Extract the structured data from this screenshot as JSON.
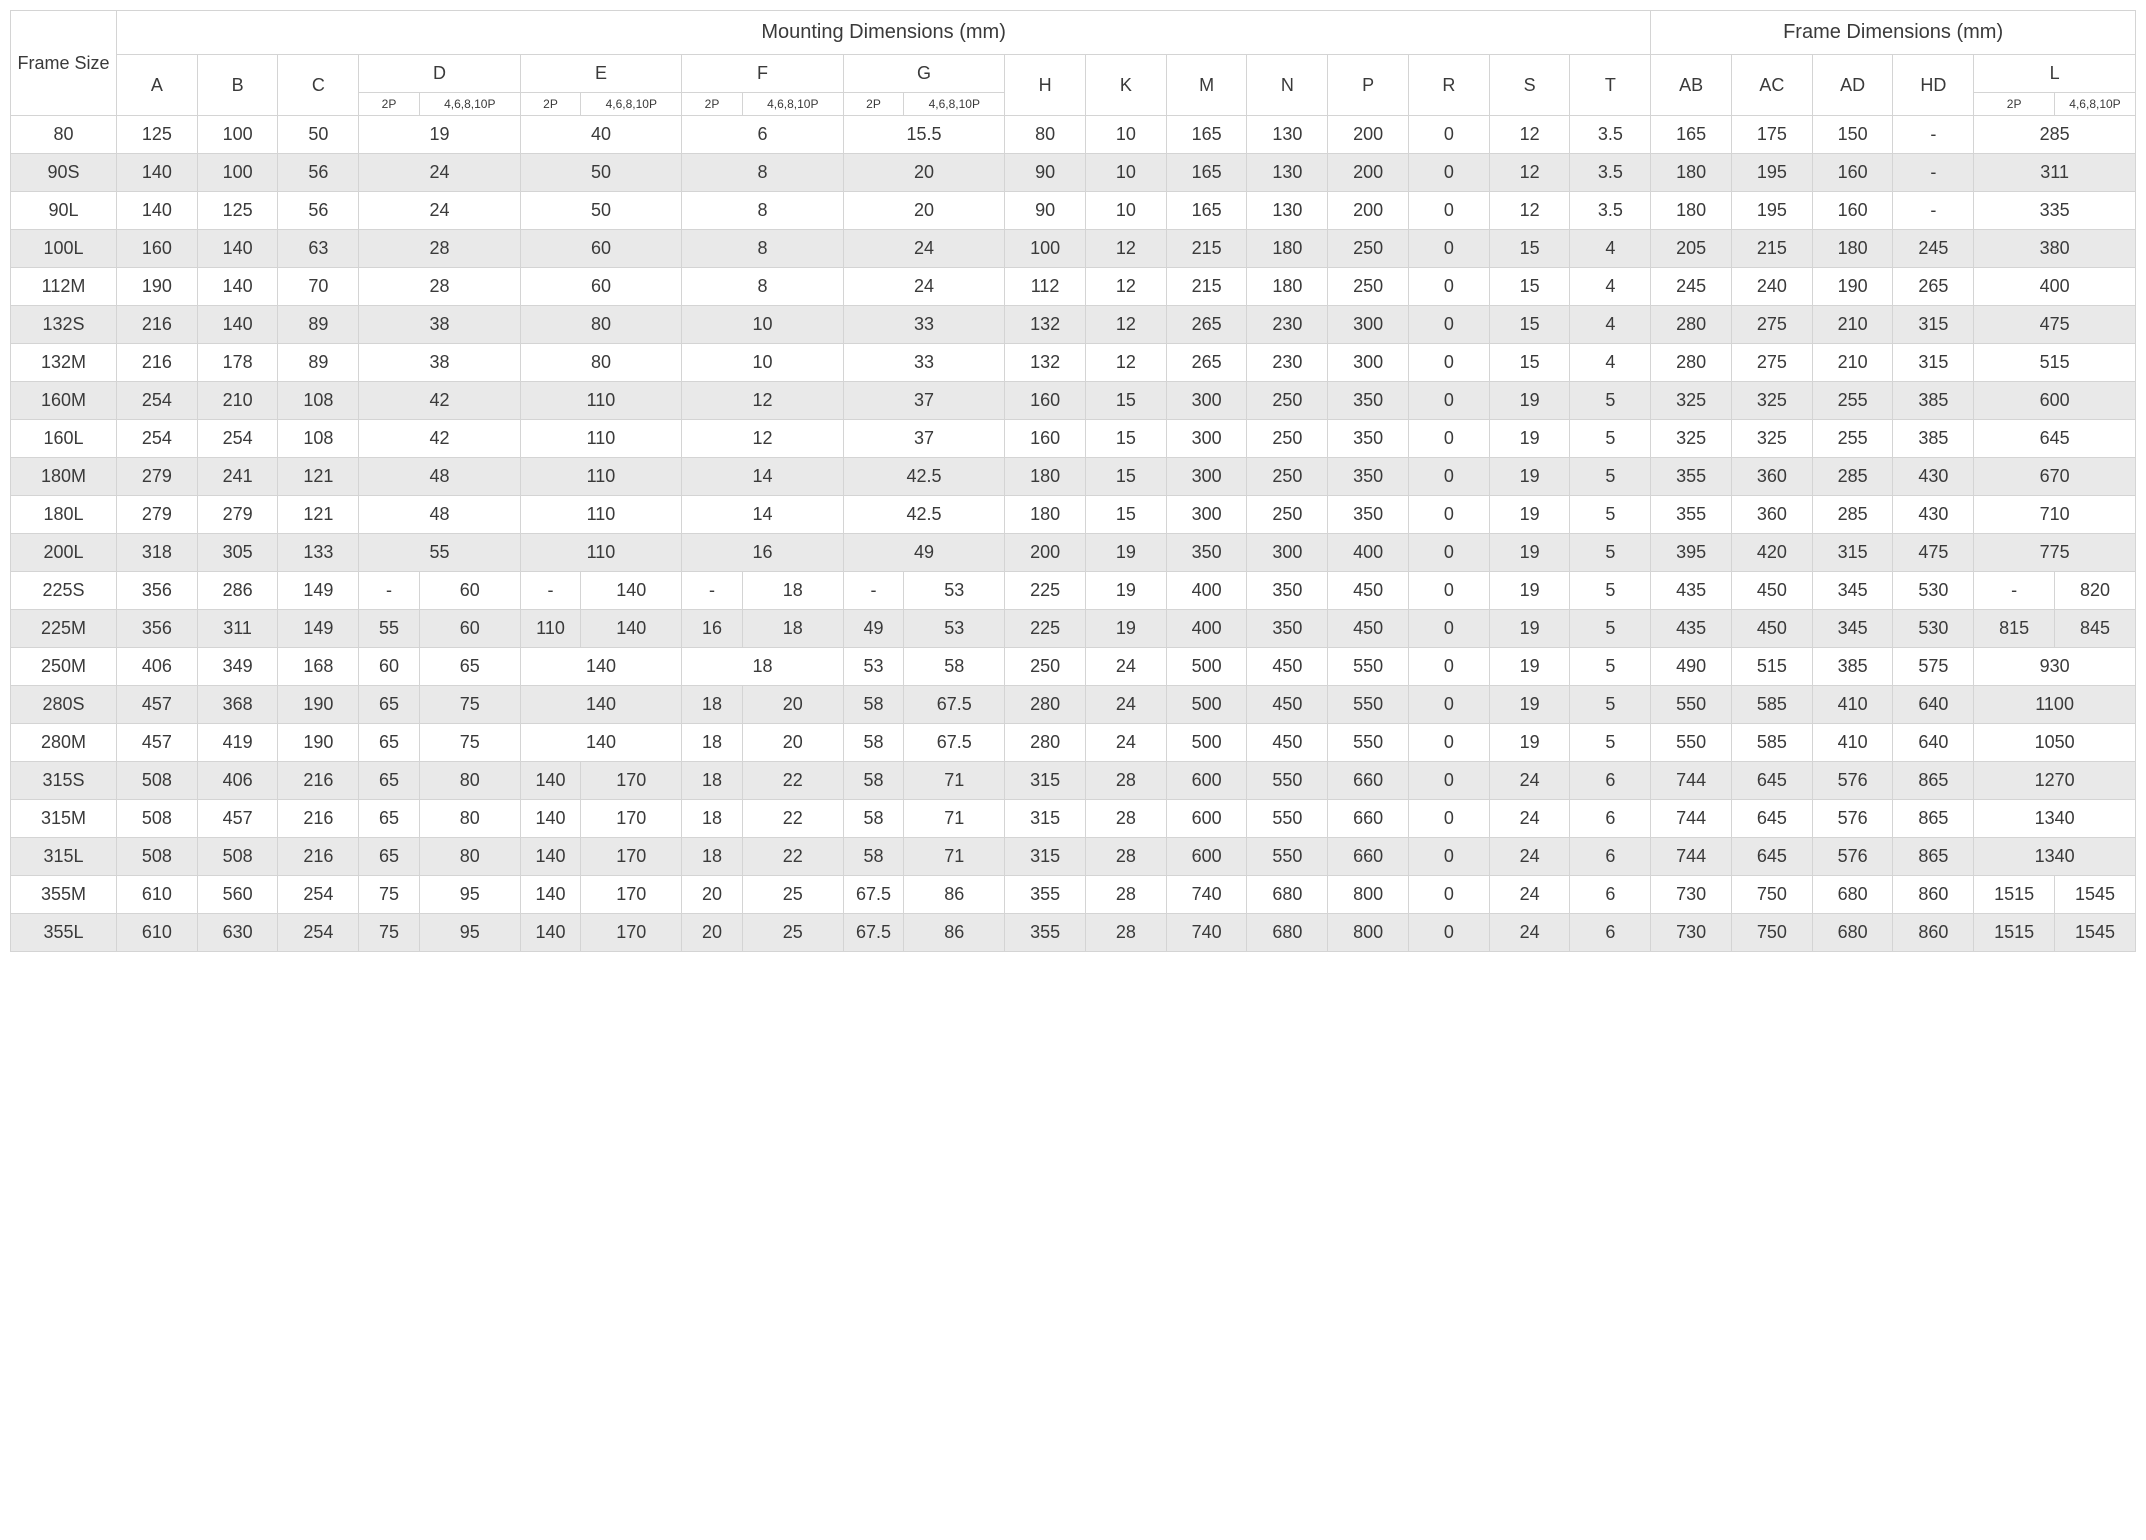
{
  "table": {
    "header": {
      "frame_size": "Frame Size",
      "mounting_title": "Mounting Dimensions (mm)",
      "frame_dim_title": "Frame Dimensions (mm)",
      "cols_simple": [
        "A",
        "B",
        "C",
        "H",
        "K",
        "M",
        "N",
        "P",
        "R",
        "S",
        "T",
        "AB",
        "AC",
        "AD",
        "HD"
      ],
      "cols_split": [
        "D",
        "E",
        "F",
        "G",
        "L"
      ],
      "split_sub": [
        "2P",
        "4,6,8,10P"
      ]
    },
    "colors": {
      "even_row": "#e9e9e9",
      "odd_row": "#ffffff",
      "border": "#d4d4d4",
      "text": "#3a3a3a"
    },
    "rows": [
      {
        "fs": "80",
        "A": "125",
        "B": "100",
        "C": "50",
        "D": [
          "19"
        ],
        "E": [
          "40"
        ],
        "F": [
          "6"
        ],
        "G": [
          "15.5"
        ],
        "H": "80",
        "K": "10",
        "M": "165",
        "N": "130",
        "P": "200",
        "R": "0",
        "S": "12",
        "T": "3.5",
        "AB": "165",
        "AC": "175",
        "AD": "150",
        "HD": "-",
        "L": [
          "285"
        ]
      },
      {
        "fs": "90S",
        "A": "140",
        "B": "100",
        "C": "56",
        "D": [
          "24"
        ],
        "E": [
          "50"
        ],
        "F": [
          "8"
        ],
        "G": [
          "20"
        ],
        "H": "90",
        "K": "10",
        "M": "165",
        "N": "130",
        "P": "200",
        "R": "0",
        "S": "12",
        "T": "3.5",
        "AB": "180",
        "AC": "195",
        "AD": "160",
        "HD": "-",
        "L": [
          "311"
        ]
      },
      {
        "fs": "90L",
        "A": "140",
        "B": "125",
        "C": "56",
        "D": [
          "24"
        ],
        "E": [
          "50"
        ],
        "F": [
          "8"
        ],
        "G": [
          "20"
        ],
        "H": "90",
        "K": "10",
        "M": "165",
        "N": "130",
        "P": "200",
        "R": "0",
        "S": "12",
        "T": "3.5",
        "AB": "180",
        "AC": "195",
        "AD": "160",
        "HD": "-",
        "L": [
          "335"
        ]
      },
      {
        "fs": "100L",
        "A": "160",
        "B": "140",
        "C": "63",
        "D": [
          "28"
        ],
        "E": [
          "60"
        ],
        "F": [
          "8"
        ],
        "G": [
          "24"
        ],
        "H": "100",
        "K": "12",
        "M": "215",
        "N": "180",
        "P": "250",
        "R": "0",
        "S": "15",
        "T": "4",
        "AB": "205",
        "AC": "215",
        "AD": "180",
        "HD": "245",
        "L": [
          "380"
        ]
      },
      {
        "fs": "112M",
        "A": "190",
        "B": "140",
        "C": "70",
        "D": [
          "28"
        ],
        "E": [
          "60"
        ],
        "F": [
          "8"
        ],
        "G": [
          "24"
        ],
        "H": "112",
        "K": "12",
        "M": "215",
        "N": "180",
        "P": "250",
        "R": "0",
        "S": "15",
        "T": "4",
        "AB": "245",
        "AC": "240",
        "AD": "190",
        "HD": "265",
        "L": [
          "400"
        ]
      },
      {
        "fs": "132S",
        "A": "216",
        "B": "140",
        "C": "89",
        "D": [
          "38"
        ],
        "E": [
          "80"
        ],
        "F": [
          "10"
        ],
        "G": [
          "33"
        ],
        "H": "132",
        "K": "12",
        "M": "265",
        "N": "230",
        "P": "300",
        "R": "0",
        "S": "15",
        "T": "4",
        "AB": "280",
        "AC": "275",
        "AD": "210",
        "HD": "315",
        "L": [
          "475"
        ]
      },
      {
        "fs": "132M",
        "A": "216",
        "B": "178",
        "C": "89",
        "D": [
          "38"
        ],
        "E": [
          "80"
        ],
        "F": [
          "10"
        ],
        "G": [
          "33"
        ],
        "H": "132",
        "K": "12",
        "M": "265",
        "N": "230",
        "P": "300",
        "R": "0",
        "S": "15",
        "T": "4",
        "AB": "280",
        "AC": "275",
        "AD": "210",
        "HD": "315",
        "L": [
          "515"
        ]
      },
      {
        "fs": "160M",
        "A": "254",
        "B": "210",
        "C": "108",
        "D": [
          "42"
        ],
        "E": [
          "110"
        ],
        "F": [
          "12"
        ],
        "G": [
          "37"
        ],
        "H": "160",
        "K": "15",
        "M": "300",
        "N": "250",
        "P": "350",
        "R": "0",
        "S": "19",
        "T": "5",
        "AB": "325",
        "AC": "325",
        "AD": "255",
        "HD": "385",
        "L": [
          "600"
        ]
      },
      {
        "fs": "160L",
        "A": "254",
        "B": "254",
        "C": "108",
        "D": [
          "42"
        ],
        "E": [
          "110"
        ],
        "F": [
          "12"
        ],
        "G": [
          "37"
        ],
        "H": "160",
        "K": "15",
        "M": "300",
        "N": "250",
        "P": "350",
        "R": "0",
        "S": "19",
        "T": "5",
        "AB": "325",
        "AC": "325",
        "AD": "255",
        "HD": "385",
        "L": [
          "645"
        ]
      },
      {
        "fs": "180M",
        "A": "279",
        "B": "241",
        "C": "121",
        "D": [
          "48"
        ],
        "E": [
          "110"
        ],
        "F": [
          "14"
        ],
        "G": [
          "42.5"
        ],
        "H": "180",
        "K": "15",
        "M": "300",
        "N": "250",
        "P": "350",
        "R": "0",
        "S": "19",
        "T": "5",
        "AB": "355",
        "AC": "360",
        "AD": "285",
        "HD": "430",
        "L": [
          "670"
        ]
      },
      {
        "fs": "180L",
        "A": "279",
        "B": "279",
        "C": "121",
        "D": [
          "48"
        ],
        "E": [
          "110"
        ],
        "F": [
          "14"
        ],
        "G": [
          "42.5"
        ],
        "H": "180",
        "K": "15",
        "M": "300",
        "N": "250",
        "P": "350",
        "R": "0",
        "S": "19",
        "T": "5",
        "AB": "355",
        "AC": "360",
        "AD": "285",
        "HD": "430",
        "L": [
          "710"
        ]
      },
      {
        "fs": "200L",
        "A": "318",
        "B": "305",
        "C": "133",
        "D": [
          "55"
        ],
        "E": [
          "110"
        ],
        "F": [
          "16"
        ],
        "G": [
          "49"
        ],
        "H": "200",
        "K": "19",
        "M": "350",
        "N": "300",
        "P": "400",
        "R": "0",
        "S": "19",
        "T": "5",
        "AB": "395",
        "AC": "420",
        "AD": "315",
        "HD": "475",
        "L": [
          "775"
        ]
      },
      {
        "fs": "225S",
        "A": "356",
        "B": "286",
        "C": "149",
        "D": [
          "-",
          "60"
        ],
        "E": [
          "-",
          "140"
        ],
        "F": [
          "-",
          "18"
        ],
        "G": [
          "-",
          "53"
        ],
        "H": "225",
        "K": "19",
        "M": "400",
        "N": "350",
        "P": "450",
        "R": "0",
        "S": "19",
        "T": "5",
        "AB": "435",
        "AC": "450",
        "AD": "345",
        "HD": "530",
        "L": [
          "-",
          "820"
        ]
      },
      {
        "fs": "225M",
        "A": "356",
        "B": "311",
        "C": "149",
        "D": [
          "55",
          "60"
        ],
        "E": [
          "110",
          "140"
        ],
        "F": [
          "16",
          "18"
        ],
        "G": [
          "49",
          "53"
        ],
        "H": "225",
        "K": "19",
        "M": "400",
        "N": "350",
        "P": "450",
        "R": "0",
        "S": "19",
        "T": "5",
        "AB": "435",
        "AC": "450",
        "AD": "345",
        "HD": "530",
        "L": [
          "815",
          "845"
        ]
      },
      {
        "fs": "250M",
        "A": "406",
        "B": "349",
        "C": "168",
        "D": [
          "60",
          "65"
        ],
        "E": [
          "140"
        ],
        "F": [
          "18"
        ],
        "G": [
          "53",
          "58"
        ],
        "H": "250",
        "K": "24",
        "M": "500",
        "N": "450",
        "P": "550",
        "R": "0",
        "S": "19",
        "T": "5",
        "AB": "490",
        "AC": "515",
        "AD": "385",
        "HD": "575",
        "L": [
          "930"
        ]
      },
      {
        "fs": "280S",
        "A": "457",
        "B": "368",
        "C": "190",
        "D": [
          "65",
          "75"
        ],
        "E": [
          "140"
        ],
        "F": [
          "18",
          "20"
        ],
        "G": [
          "58",
          "67.5"
        ],
        "H": "280",
        "K": "24",
        "M": "500",
        "N": "450",
        "P": "550",
        "R": "0",
        "S": "19",
        "T": "5",
        "AB": "550",
        "AC": "585",
        "AD": "410",
        "HD": "640",
        "L": [
          "1100"
        ]
      },
      {
        "fs": "280M",
        "A": "457",
        "B": "419",
        "C": "190",
        "D": [
          "65",
          "75"
        ],
        "E": [
          "140"
        ],
        "F": [
          "18",
          "20"
        ],
        "G": [
          "58",
          "67.5"
        ],
        "H": "280",
        "K": "24",
        "M": "500",
        "N": "450",
        "P": "550",
        "R": "0",
        "S": "19",
        "T": "5",
        "AB": "550",
        "AC": "585",
        "AD": "410",
        "HD": "640",
        "L": [
          "1050"
        ]
      },
      {
        "fs": "315S",
        "A": "508",
        "B": "406",
        "C": "216",
        "D": [
          "65",
          "80"
        ],
        "E": [
          "140",
          "170"
        ],
        "F": [
          "18",
          "22"
        ],
        "G": [
          "58",
          "71"
        ],
        "H": "315",
        "K": "28",
        "M": "600",
        "N": "550",
        "P": "660",
        "R": "0",
        "S": "24",
        "T": "6",
        "AB": "744",
        "AC": "645",
        "AD": "576",
        "HD": "865",
        "L": [
          "1270"
        ]
      },
      {
        "fs": "315M",
        "A": "508",
        "B": "457",
        "C": "216",
        "D": [
          "65",
          "80"
        ],
        "E": [
          "140",
          "170"
        ],
        "F": [
          "18",
          "22"
        ],
        "G": [
          "58",
          "71"
        ],
        "H": "315",
        "K": "28",
        "M": "600",
        "N": "550",
        "P": "660",
        "R": "0",
        "S": "24",
        "T": "6",
        "AB": "744",
        "AC": "645",
        "AD": "576",
        "HD": "865",
        "L": [
          "1340"
        ]
      },
      {
        "fs": "315L",
        "A": "508",
        "B": "508",
        "C": "216",
        "D": [
          "65",
          "80"
        ],
        "E": [
          "140",
          "170"
        ],
        "F": [
          "18",
          "22"
        ],
        "G": [
          "58",
          "71"
        ],
        "H": "315",
        "K": "28",
        "M": "600",
        "N": "550",
        "P": "660",
        "R": "0",
        "S": "24",
        "T": "6",
        "AB": "744",
        "AC": "645",
        "AD": "576",
        "HD": "865",
        "L": [
          "1340"
        ]
      },
      {
        "fs": "355M",
        "A": "610",
        "B": "560",
        "C": "254",
        "D": [
          "75",
          "95"
        ],
        "E": [
          "140",
          "170"
        ],
        "F": [
          "20",
          "25"
        ],
        "G": [
          "67.5",
          "86"
        ],
        "H": "355",
        "K": "28",
        "M": "740",
        "N": "680",
        "P": "800",
        "R": "0",
        "S": "24",
        "T": "6",
        "AB": "730",
        "AC": "750",
        "AD": "680",
        "HD": "860",
        "L": [
          "1515",
          "1545"
        ]
      },
      {
        "fs": "355L",
        "A": "610",
        "B": "630",
        "C": "254",
        "D": [
          "75",
          "95"
        ],
        "E": [
          "140",
          "170"
        ],
        "F": [
          "20",
          "25"
        ],
        "G": [
          "67.5",
          "86"
        ],
        "H": "355",
        "K": "28",
        "M": "740",
        "N": "680",
        "P": "800",
        "R": "0",
        "S": "24",
        "T": "6",
        "AB": "730",
        "AC": "750",
        "AD": "680",
        "HD": "860",
        "L": [
          "1515",
          "1545"
        ]
      }
    ]
  }
}
